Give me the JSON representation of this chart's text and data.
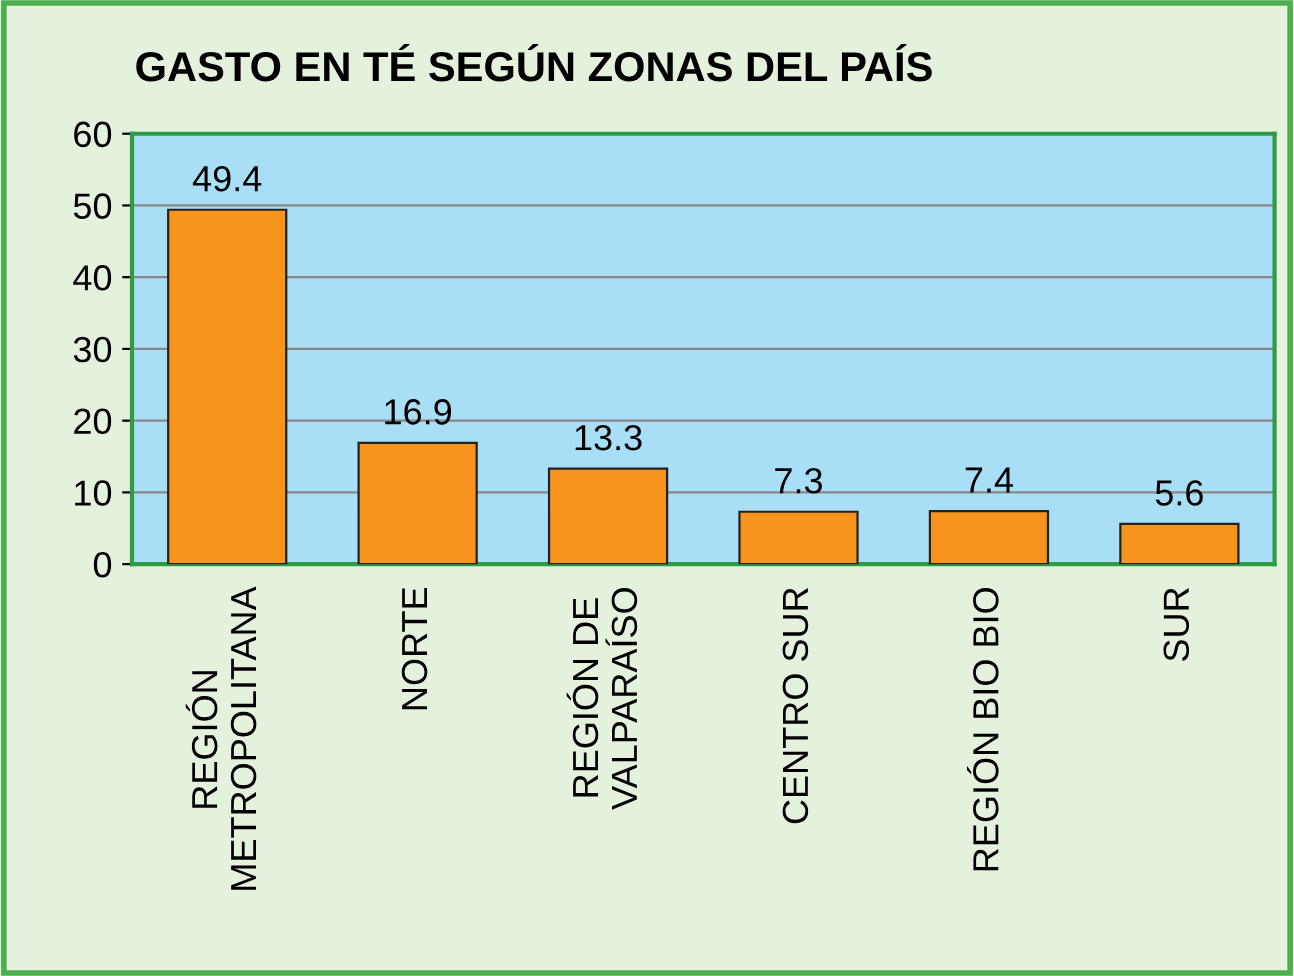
{
  "chart_data": {
    "type": "bar",
    "title": "GASTO EN TÉ SEGÚN ZONAS DEL PAÍS",
    "categories": [
      "REGIÓN\nMETROPOLITANA",
      "NORTE",
      "REGIÓN DE\nVALPARAÍSO",
      "CENTRO SUR",
      "REGIÓN BIO BIO",
      "SUR"
    ],
    "values": [
      49.4,
      16.9,
      13.3,
      7.3,
      7.4,
      5.6
    ],
    "color": "#f7941d",
    "ylim": [
      0,
      60
    ],
    "yticks": [
      0,
      10,
      20,
      30,
      40,
      50,
      60
    ],
    "grid": "y",
    "data_labels": true,
    "legend": false
  }
}
